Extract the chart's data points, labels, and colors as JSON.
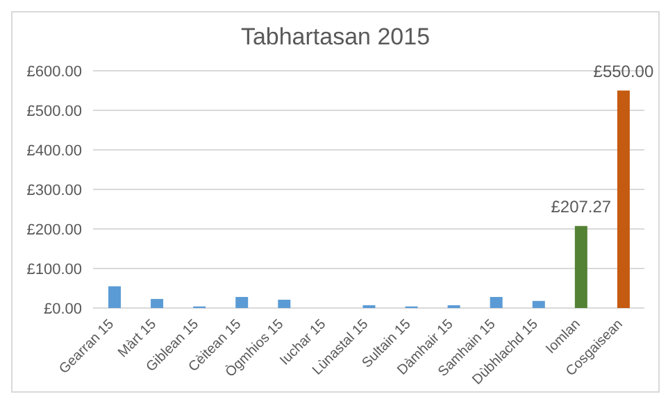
{
  "chart_data": {
    "type": "bar",
    "title": "Tabhartasan 2015",
    "categories": [
      "Gearran 15",
      "Màrt 15",
      "Giblean 15",
      "Cèitean 15",
      "Ògmhios 15",
      "Iuchar 15",
      "Lùnastal 15",
      "Sultain 15",
      "Dàmhair 15",
      "Samhain 15",
      "Dùbhlachd 15",
      "Iomlan",
      "Cosgaisean"
    ],
    "values": [
      55,
      23,
      4,
      28,
      21,
      0,
      7,
      4,
      7,
      28,
      18,
      207.27,
      550
    ],
    "colors": [
      "#5b9bd5",
      "#5b9bd5",
      "#5b9bd5",
      "#5b9bd5",
      "#5b9bd5",
      "#5b9bd5",
      "#5b9bd5",
      "#5b9bd5",
      "#5b9bd5",
      "#5b9bd5",
      "#5b9bd5",
      "#548235",
      "#c55a11"
    ],
    "value_labels": [
      null,
      null,
      null,
      null,
      null,
      null,
      null,
      null,
      null,
      null,
      null,
      "£207.27",
      "£550.00"
    ],
    "ylim": [
      0,
      600
    ],
    "yticks": [
      {
        "value": 0,
        "label": "£0.00"
      },
      {
        "value": 100,
        "label": "£100.00"
      },
      {
        "value": 200,
        "label": "£200.00"
      },
      {
        "value": 300,
        "label": "£300.00"
      },
      {
        "value": 400,
        "label": "£400.00"
      },
      {
        "value": 500,
        "label": "£500.00"
      },
      {
        "value": 600,
        "label": "£600.00"
      }
    ],
    "grid": "y",
    "legend": false
  }
}
